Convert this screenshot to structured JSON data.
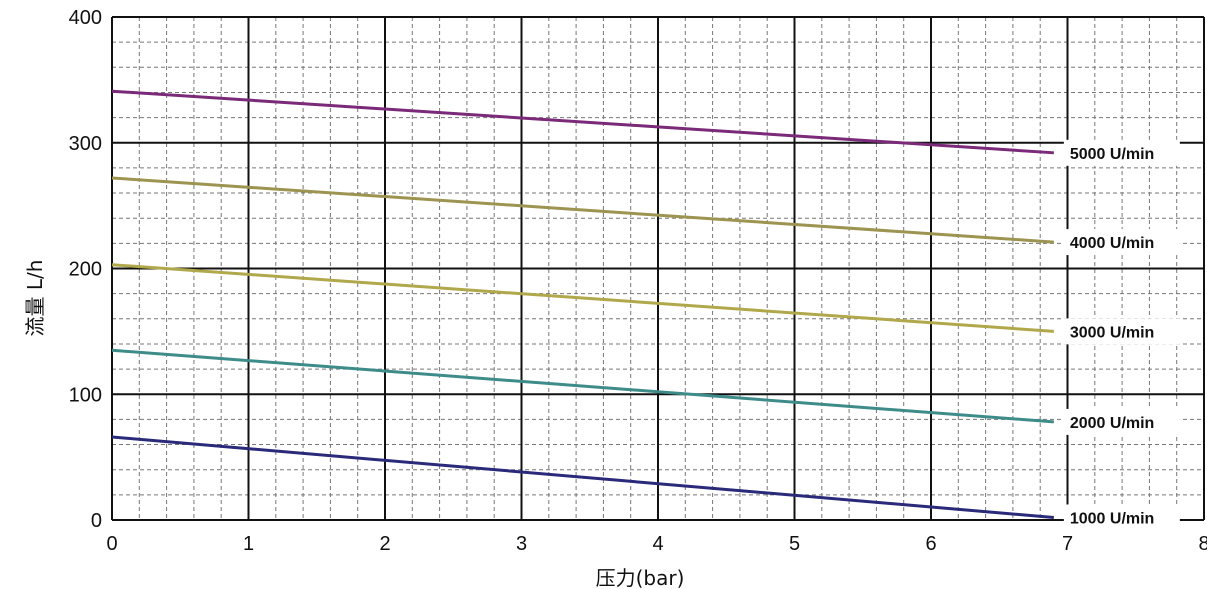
{
  "chart_data": {
    "type": "line",
    "xlabel": "压力(bar)",
    "ylabel": "流量   L/h",
    "xlim": [
      0,
      8
    ],
    "ylim": [
      0,
      400
    ],
    "x_ticks": [
      "0",
      "1",
      "2",
      "3",
      "4",
      "5",
      "6",
      "7",
      "8"
    ],
    "y_ticks": [
      "0",
      "100",
      "200",
      "300",
      "400"
    ],
    "grid": true,
    "minor_grid": "dashed, 5 divisions per major",
    "legend": "inline labels at right end of each line",
    "series": [
      {
        "name": "5000 U/min",
        "color": "#7a2a78",
        "x": [
          0,
          6.9
        ],
        "y": [
          341,
          292
        ]
      },
      {
        "name": "4000 U/min",
        "color": "#9c9450",
        "x": [
          0,
          6.9
        ],
        "y": [
          272,
          221
        ]
      },
      {
        "name": "3000 U/min",
        "color": "#b0a84a",
        "x": [
          0,
          6.9
        ],
        "y": [
          203,
          150
        ]
      },
      {
        "name": "2000 U/min",
        "color": "#3e8c8a",
        "x": [
          0,
          6.9
        ],
        "y": [
          135,
          78
        ]
      },
      {
        "name": "1000 U/min",
        "color": "#2a2a7a",
        "x": [
          0,
          6.9
        ],
        "y": [
          66,
          2
        ]
      }
    ]
  }
}
